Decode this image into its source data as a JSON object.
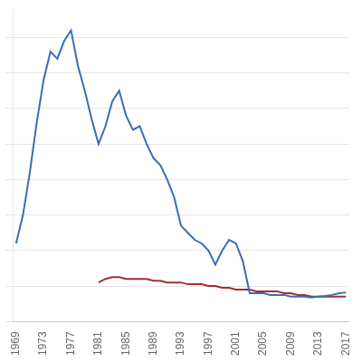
{
  "chart_data": {
    "type": "line",
    "x": [
      1969,
      1970,
      1971,
      1972,
      1973,
      1974,
      1975,
      1976,
      1977,
      1978,
      1979,
      1980,
      1981,
      1982,
      1983,
      1984,
      1985,
      1986,
      1987,
      1988,
      1989,
      1990,
      1991,
      1992,
      1993,
      1994,
      1995,
      1996,
      1997,
      1998,
      1999,
      2000,
      2001,
      2002,
      2003,
      2004,
      2005,
      2006,
      2007,
      2008,
      2009,
      2010,
      2011,
      2012,
      2013,
      2014,
      2015,
      2016,
      2017
    ],
    "series": [
      {
        "color": "#3a6db5",
        "values": [
          22,
          30,
          42,
          56,
          68,
          76,
          74,
          79,
          82,
          72,
          65,
          57,
          50,
          55,
          62,
          65,
          58,
          54,
          55,
          50,
          46,
          44,
          40,
          35,
          27,
          25,
          23,
          22,
          20,
          16,
          20,
          23,
          22,
          17,
          8,
          8,
          8,
          7.5,
          7.5,
          7.5,
          7,
          7,
          7,
          6.8,
          7,
          7.2,
          7.5,
          8,
          8.2
        ]
      },
      {
        "color": "#a03030",
        "values": [
          null,
          null,
          null,
          null,
          null,
          null,
          null,
          null,
          null,
          null,
          null,
          null,
          11,
          12,
          12.5,
          12.5,
          12,
          12,
          12,
          12,
          11.5,
          11.5,
          11,
          11,
          11,
          10.5,
          10.5,
          10.5,
          10,
          10,
          9.5,
          9.5,
          9,
          9,
          9,
          8.5,
          8.5,
          8.5,
          8.5,
          8,
          8,
          7.5,
          7.5,
          7,
          7,
          7,
          7,
          7,
          7
        ]
      }
    ],
    "xlim": [
      1968.5,
      2017.5
    ],
    "xticks": [
      1969,
      1973,
      1977,
      1981,
      1985,
      1989,
      1993,
      1997,
      2001,
      2005,
      2009,
      2013,
      2017
    ],
    "ylim": [
      0,
      88
    ],
    "yticks": [
      0,
      10,
      20,
      30,
      40,
      50,
      60,
      70,
      80
    ],
    "grid": "y",
    "tick_labels": "x"
  }
}
